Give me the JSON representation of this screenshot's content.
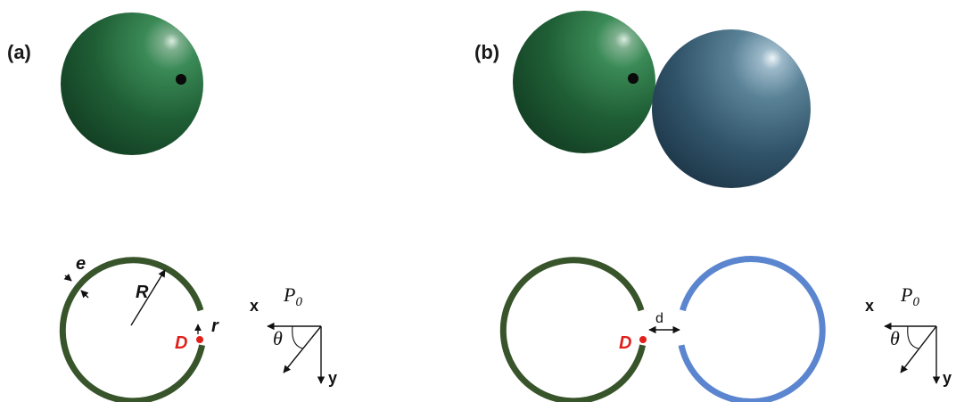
{
  "panels": [
    {
      "id": "a",
      "label": "(a)"
    },
    {
      "id": "b",
      "label": "(b)"
    }
  ],
  "symbols": {
    "e": "e",
    "R": "R",
    "r": "r",
    "D": "D",
    "d": "d",
    "x": "x",
    "y": "y",
    "theta": "θ",
    "P": "P",
    "P_sub": "0"
  },
  "colors": {
    "shell_green": "#38542a",
    "shell_blue": "#5b86cf",
    "point_red": "#e0201b",
    "sphere_green": "#2a7a46",
    "sphere_blue": "#4a6f82"
  }
}
